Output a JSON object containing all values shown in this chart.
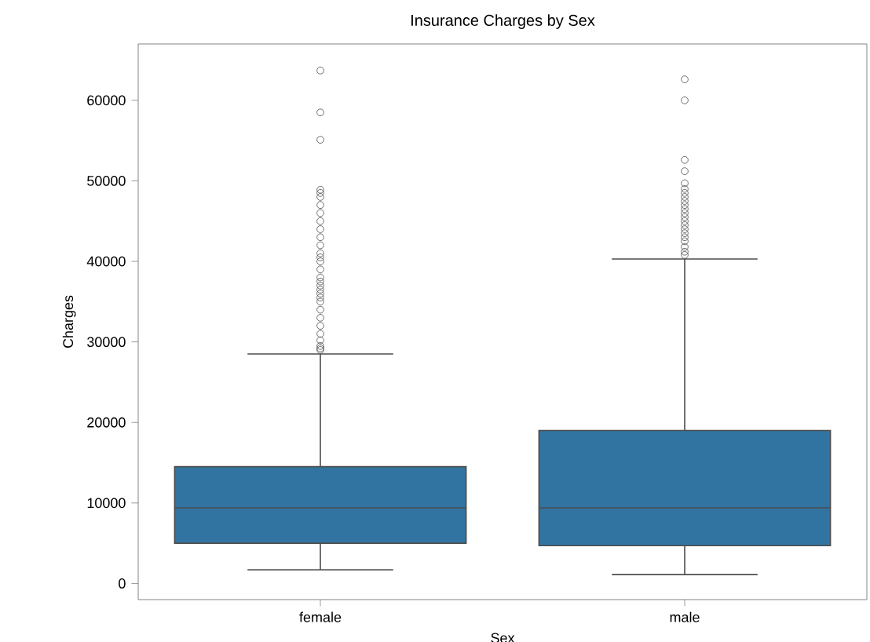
{
  "chart_data": {
    "type": "box",
    "title": "Insurance Charges by Sex",
    "xlabel": "Sex",
    "ylabel": "Charges",
    "categories": [
      "female",
      "male"
    ],
    "color": "#3274a1",
    "boxes": [
      {
        "low": 1700,
        "q1": 5000,
        "median": 9400,
        "q3": 14500,
        "high": 28500,
        "outliers": [
          29000,
          29200,
          29500,
          30200,
          31000,
          32000,
          33000,
          34000,
          35000,
          35500,
          36000,
          36500,
          37000,
          37500,
          38000,
          39000,
          40000,
          40500,
          41000,
          42000,
          43000,
          44000,
          45000,
          46000,
          47000,
          48000,
          48500,
          48900,
          55100,
          58500,
          63700
        ]
      },
      {
        "low": 1100,
        "q1": 4700,
        "median": 9400,
        "q3": 19000,
        "high": 40300,
        "outliers": [
          40800,
          41200,
          41800,
          42500,
          43000,
          43500,
          44000,
          44500,
          45000,
          45500,
          46000,
          46500,
          47000,
          47500,
          48000,
          48500,
          49000,
          49700,
          51200,
          52600,
          60000,
          62600
        ]
      }
    ],
    "ylim": [
      -2000,
      67000
    ],
    "yticks": [
      0,
      10000,
      20000,
      30000,
      40000,
      50000,
      60000
    ],
    "grid": false
  }
}
